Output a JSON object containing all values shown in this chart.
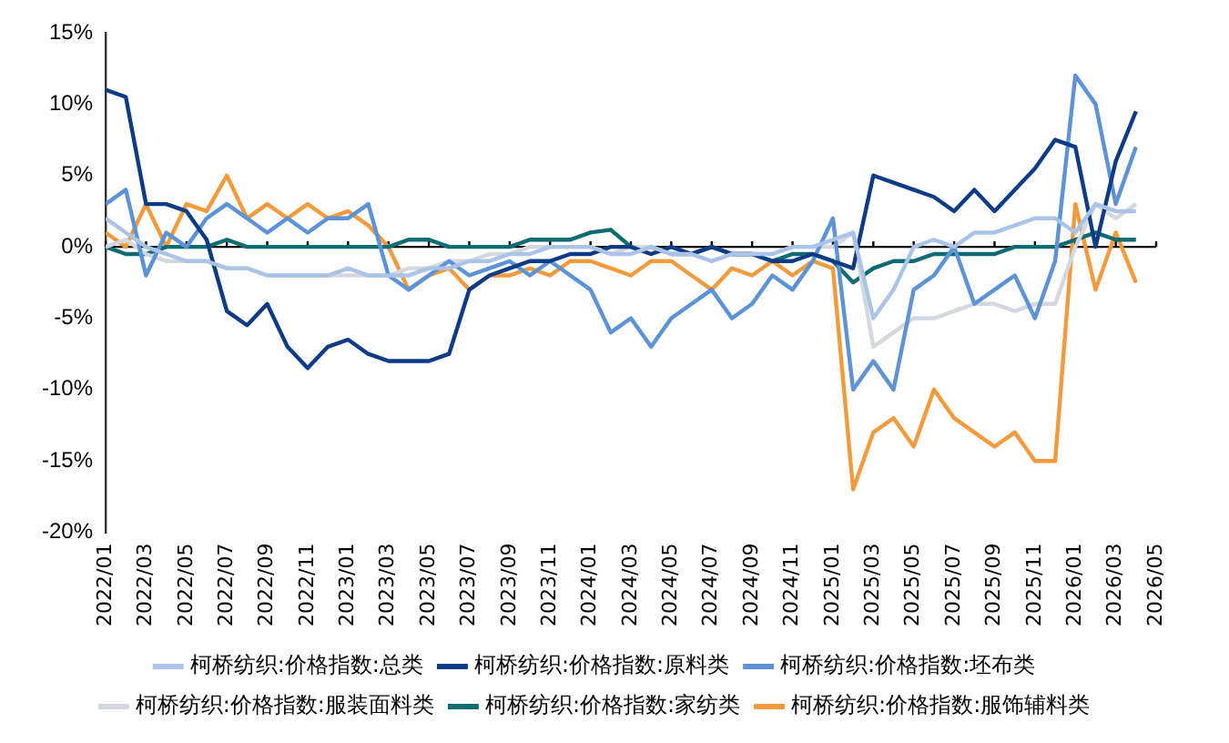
{
  "chart_data": {
    "type": "line",
    "x": [
      "2022-01",
      "2022-02",
      "2022-03",
      "2022-04",
      "2022-05",
      "2022-06",
      "2022-07",
      "2022-08",
      "2022-09",
      "2022-10",
      "2022-11",
      "2022-12",
      "2023-01",
      "2023-02",
      "2023-03",
      "2023-04",
      "2023-05",
      "2023-06",
      "2023-07",
      "2023-08",
      "2023-09",
      "2023-10",
      "2023-11",
      "2023-12",
      "2024-01",
      "2024-02",
      "2024-03",
      "2024-04",
      "2024-05",
      "2024-06",
      "2024-07",
      "2024-08",
      "2024-09",
      "2024-10",
      "2024-11",
      "2024-12",
      "2025-01",
      "2025-02",
      "2025-03",
      "2025-04",
      "2025-05",
      "2025-06",
      "2025-07",
      "2025-08",
      "2025-09",
      "2025-10",
      "2025-11",
      "2025-12",
      "2026-01",
      "2026-02",
      "2026-03",
      "2026-04"
    ],
    "series": [
      {
        "name": "柯桥纺织:价格指数:总类",
        "color": "#a9c4e6",
        "values": [
          2,
          1,
          0,
          -0.5,
          -1,
          -1,
          -1.5,
          -1.5,
          -2,
          -2,
          -2,
          -2,
          -1.5,
          -2,
          -2,
          -2,
          -1.5,
          -1.5,
          -1,
          -1,
          -0.5,
          -0.5,
          0,
          0,
          0,
          -0.5,
          -0.5,
          0,
          -0.5,
          -0.5,
          -1,
          -0.5,
          -0.5,
          -0.5,
          0,
          0,
          0.5,
          1,
          -5,
          -3,
          0,
          0.5,
          0,
          1,
          1,
          1.5,
          2,
          2,
          1,
          3,
          2.5,
          2.5
        ]
      },
      {
        "name": "柯桥纺织:价格指数:原料类",
        "color": "#0d3b85",
        "values": [
          11,
          10.5,
          3,
          3,
          2.5,
          0.5,
          -4.5,
          -5.5,
          -4,
          -7,
          -8.5,
          -7,
          -6.5,
          -7.5,
          -8,
          -8,
          -8,
          -7.5,
          -3,
          -2,
          -1.5,
          -1,
          -1,
          -0.5,
          -0.5,
          0,
          0,
          -0.5,
          0,
          -0.5,
          0,
          -0.5,
          -0.5,
          -1,
          -1,
          -0.5,
          -1,
          -1.5,
          5,
          4.5,
          4,
          3.5,
          2.5,
          4,
          2.5,
          4,
          5.5,
          7.5,
          7,
          0,
          6,
          9.5
        ]
      },
      {
        "name": "柯桥纺织:价格指数:坯布类",
        "color": "#5b93d6",
        "values": [
          3,
          4,
          -2,
          1,
          0,
          2,
          3,
          2,
          1,
          2,
          1,
          2,
          2,
          3,
          -2,
          -3,
          -2,
          -1,
          -2,
          -1.5,
          -1,
          -2,
          -1,
          -2,
          -3,
          -6,
          -5,
          -7,
          -5,
          -4,
          -3,
          -5,
          -4,
          -2,
          -3,
          -1,
          2,
          -10,
          -8,
          -10,
          -3,
          -2,
          0,
          -4,
          -3,
          -2,
          -5,
          -1,
          12,
          10,
          3,
          7
        ]
      },
      {
        "name": "柯桥纺织:价格指数:服装面料类",
        "color": "#d3d7e0",
        "values": [
          0,
          0.5,
          -0.5,
          -1,
          -1,
          -1,
          -1.5,
          -1.5,
          -2,
          -2,
          -2,
          -2,
          -2,
          -2,
          -2,
          -1.5,
          -1.5,
          -1,
          -1,
          -0.5,
          -0.5,
          0,
          0,
          0,
          0,
          -0.5,
          0,
          0,
          -0.5,
          -0.5,
          -1,
          -0.5,
          -0.5,
          -0.5,
          0,
          0,
          0,
          1,
          -7,
          -6,
          -5,
          -5,
          -4.5,
          -4,
          -4,
          -4.5,
          -4,
          -4,
          0,
          3,
          2,
          3
        ]
      },
      {
        "name": "柯桥纺织:价格指数:家纺类",
        "color": "#0d6b73",
        "values": [
          0,
          -0.5,
          -0.5,
          0,
          0,
          0,
          0.5,
          0,
          0,
          0,
          0,
          0,
          0,
          0,
          0,
          0.5,
          0.5,
          0,
          0,
          0,
          0,
          0.5,
          0.5,
          0.5,
          1,
          1.2,
          0,
          0,
          -0.5,
          -0.5,
          0,
          -0.5,
          -0.5,
          -1,
          -0.5,
          -0.5,
          -1,
          -2.5,
          -1.5,
          -1,
          -1,
          -0.5,
          -0.5,
          -0.5,
          -0.5,
          0,
          0,
          0,
          0.5,
          1,
          0.5,
          0.5
        ]
      },
      {
        "name": "柯桥纺织:价格指数:服饰辅料类",
        "color": "#f29a3c",
        "values": [
          1,
          0,
          3,
          0,
          3,
          2.5,
          5,
          2,
          3,
          2,
          3,
          2,
          2.5,
          1.5,
          0,
          -3,
          -2,
          -1.5,
          -3,
          -2,
          -2,
          -1.5,
          -2,
          -1,
          -1,
          -1.5,
          -2,
          -1,
          -1,
          -2,
          -3,
          -1.5,
          -2,
          -1,
          -2,
          -1,
          -1.5,
          -17,
          -13,
          -12,
          -14,
          -10,
          -12,
          -13,
          -14,
          -13,
          -15,
          -15,
          3,
          -3,
          1,
          -2.5
        ]
      }
    ],
    "xlim": [
      "2022-01",
      "2026-05"
    ],
    "xticks": [
      {
        "value": "2022-01",
        "label": "2022/01"
      },
      {
        "value": "2022-03",
        "label": "2022/03"
      },
      {
        "value": "2022-05",
        "label": "2022/05"
      },
      {
        "value": "2022-07",
        "label": "2022/07"
      },
      {
        "value": "2022-09",
        "label": "2022/09"
      },
      {
        "value": "2022-11",
        "label": "2022/11"
      },
      {
        "value": "2023-01",
        "label": "2023/01"
      },
      {
        "value": "2023-03",
        "label": "2023/03"
      },
      {
        "value": "2023-05",
        "label": "2023/05"
      },
      {
        "value": "2023-07",
        "label": "2023/07"
      },
      {
        "value": "2023-09",
        "label": "2023/09"
      },
      {
        "value": "2023-11",
        "label": "2023/11"
      },
      {
        "value": "2024-01",
        "label": "2024/01"
      },
      {
        "value": "2024-03",
        "label": "2024/03"
      },
      {
        "value": "2024-05",
        "label": "2024/05"
      },
      {
        "value": "2024-07",
        "label": "2024/07"
      },
      {
        "value": "2024-09",
        "label": "2024/09"
      },
      {
        "value": "2024-11",
        "label": "2024/11"
      },
      {
        "value": "2025-01",
        "label": "2025/01"
      },
      {
        "value": "2025-03",
        "label": "2025/03"
      },
      {
        "value": "2025-05",
        "label": "2025/05"
      },
      {
        "value": "2025-07",
        "label": "2025/07"
      },
      {
        "value": "2025-09",
        "label": "2025/09"
      },
      {
        "value": "2025-11",
        "label": "2025/11"
      },
      {
        "value": "2026-01",
        "label": "2026/01"
      },
      {
        "value": "2026-03",
        "label": "2026/03"
      },
      {
        "value": "2026-05",
        "label": "2026/05"
      }
    ],
    "ylim": [
      -20,
      15
    ],
    "yticks": [
      {
        "value": -20,
        "label": "-20%"
      },
      {
        "value": -15,
        "label": "-15%"
      },
      {
        "value": -10,
        "label": "-10%"
      },
      {
        "value": -5,
        "label": "-5%"
      },
      {
        "value": 0,
        "label": "0%"
      },
      {
        "value": 5,
        "label": "5%"
      },
      {
        "value": 10,
        "label": "10%"
      },
      {
        "value": 15,
        "label": "15%"
      }
    ],
    "ref_lines": [
      {
        "axis": "y",
        "value": 0,
        "color": "#000000"
      }
    ],
    "grid": false,
    "legend": "bottom",
    "marker": "none",
    "line_style": "solid"
  }
}
